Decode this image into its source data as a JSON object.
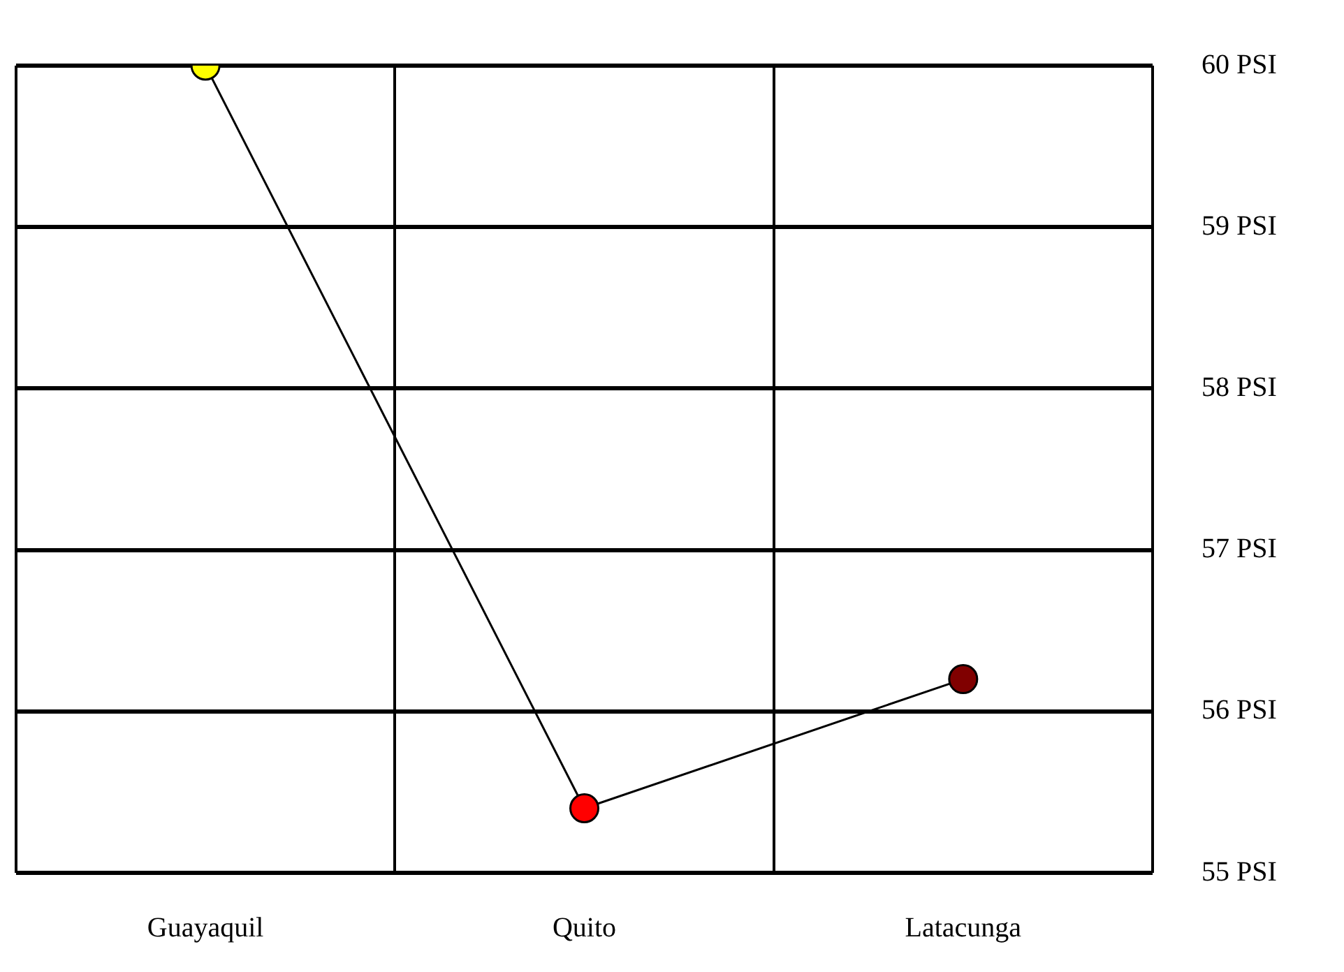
{
  "chart_data": {
    "type": "line",
    "categories": [
      "Guayaquil",
      "Quito",
      "Latacunga"
    ],
    "series": [
      {
        "color": "#000000",
        "colors": [
          "#ffff00",
          "#ff0000",
          "#800000"
        ],
        "values": [
          60,
          55.4,
          56.2
        ]
      }
    ],
    "ylim": [
      55,
      60
    ],
    "yticks": [
      {
        "value": 55,
        "label": "55 PSI"
      },
      {
        "value": 56,
        "label": "56 PSI"
      },
      {
        "value": 57,
        "label": "57 PSI"
      },
      {
        "value": 58,
        "label": "58 PSI"
      },
      {
        "value": 59,
        "label": "59 PSI"
      },
      {
        "value": 60,
        "label": "60 PSI"
      }
    ],
    "grid": true,
    "legend": false,
    "marker": "circle",
    "line_style": "solid"
  }
}
